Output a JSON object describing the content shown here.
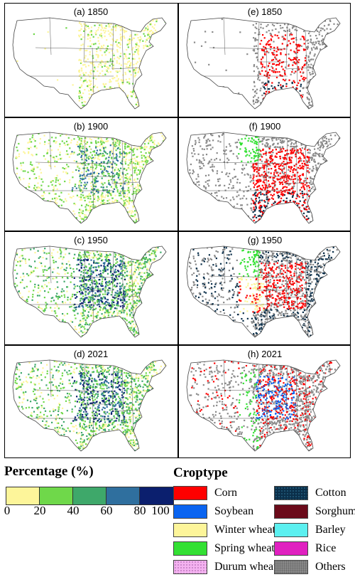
{
  "panels": [
    {
      "label": "(a) 1850",
      "map": "percentage",
      "year": 1850
    },
    {
      "label": "(e) 1850",
      "map": "croptype",
      "year": 1850
    },
    {
      "label": "(b) 1900",
      "map": "percentage",
      "year": 1900
    },
    {
      "label": "(f) 1900",
      "map": "croptype",
      "year": 1900
    },
    {
      "label": "(c) 1950",
      "map": "percentage",
      "year": 1950
    },
    {
      "label": "(g) 1950",
      "map": "croptype",
      "year": 1950
    },
    {
      "label": "(d) 2021",
      "map": "percentage",
      "year": 2021
    },
    {
      "label": "(h) 2021",
      "map": "croptype",
      "year": 2021
    }
  ],
  "percentage_legend": {
    "title": "Percentage (%)",
    "ticks": [
      "0",
      "20",
      "40",
      "60",
      "80",
      "100"
    ],
    "colors": [
      "#fdf59a",
      "#6fd84a",
      "#3ea86a",
      "#2f6f9e",
      "#0b1f6e"
    ]
  },
  "croptype_legend": {
    "title": "Croptype",
    "items": [
      {
        "name": "Corn",
        "color": "#ff0000"
      },
      {
        "name": "Cotton",
        "color": "#0b2f4a"
      },
      {
        "name": "Soybean",
        "color": "#0a64f0"
      },
      {
        "name": "Sorghum",
        "color": "#6b0a1a"
      },
      {
        "name": "Winter wheat",
        "color": "#fdf59a"
      },
      {
        "name": "Barley",
        "color": "#5cf0f0"
      },
      {
        "name": "Spring wheat",
        "color": "#33e033"
      },
      {
        "name": "Rice",
        "color": "#e020c0"
      },
      {
        "name": "Durum wheat",
        "color": "#f4b2f0"
      },
      {
        "name": "Others",
        "color": "#8a8a8a"
      }
    ]
  }
}
